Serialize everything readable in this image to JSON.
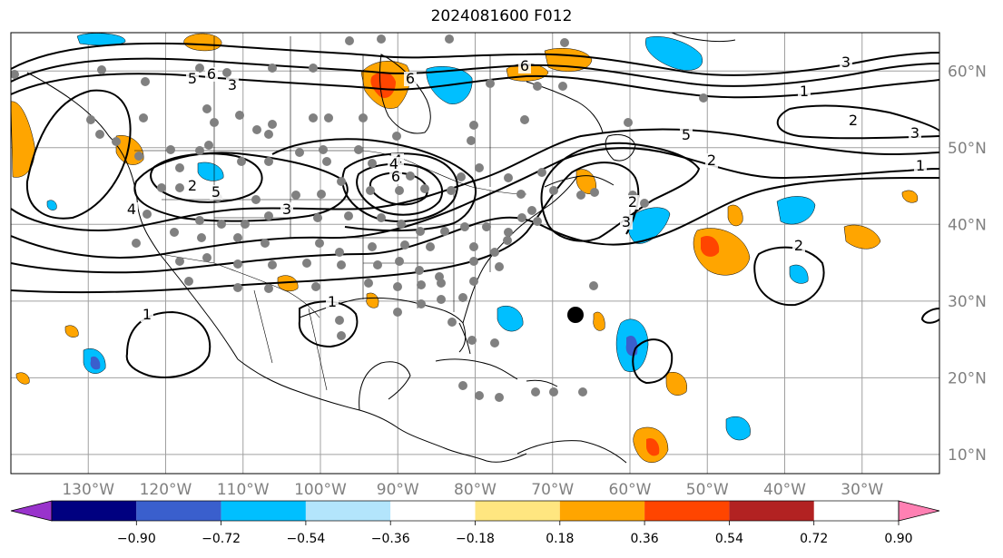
{
  "title": "2024081600 F012",
  "map": {
    "projection": "PlateCarree",
    "lon_range": [
      -140,
      -20
    ],
    "lat_range": [
      7.5,
      65
    ],
    "lon_ticks": [
      "130°W",
      "120°W",
      "110°W",
      "100°W",
      "90°W",
      "80°W",
      "70°W",
      "60°W",
      "50°W",
      "40°W",
      "30°W"
    ],
    "lat_ticks": [
      "60°N",
      "50°N",
      "40°N",
      "30°N",
      "20°N",
      "10°N"
    ],
    "grid": true,
    "contour_color": "#000000",
    "contour_labels": [
      "5",
      "6",
      "3",
      "6",
      "4",
      "2",
      "5",
      "3",
      "4",
      "6",
      "4",
      "5",
      "2",
      "2",
      "3",
      "6",
      "3",
      "1",
      "2",
      "3",
      "1",
      "1",
      "1",
      "2"
    ],
    "storm_marker": {
      "color": "#000000",
      "label": ""
    },
    "station_color": "#808080"
  },
  "colorbar": {
    "colors": [
      "#9933cc",
      "#000080",
      "#3a5fcd",
      "#00bfff",
      "#b3e5fc",
      "#ffffff",
      "#ffe680",
      "#ffa500",
      "#ff4500",
      "#b22222",
      "#ff80b3"
    ],
    "tick_labels": [
      "−0.90",
      "−0.72",
      "−0.54",
      "−0.36",
      "−0.18",
      "0.18",
      "0.36",
      "0.54",
      "0.72",
      "0.90"
    ]
  }
}
